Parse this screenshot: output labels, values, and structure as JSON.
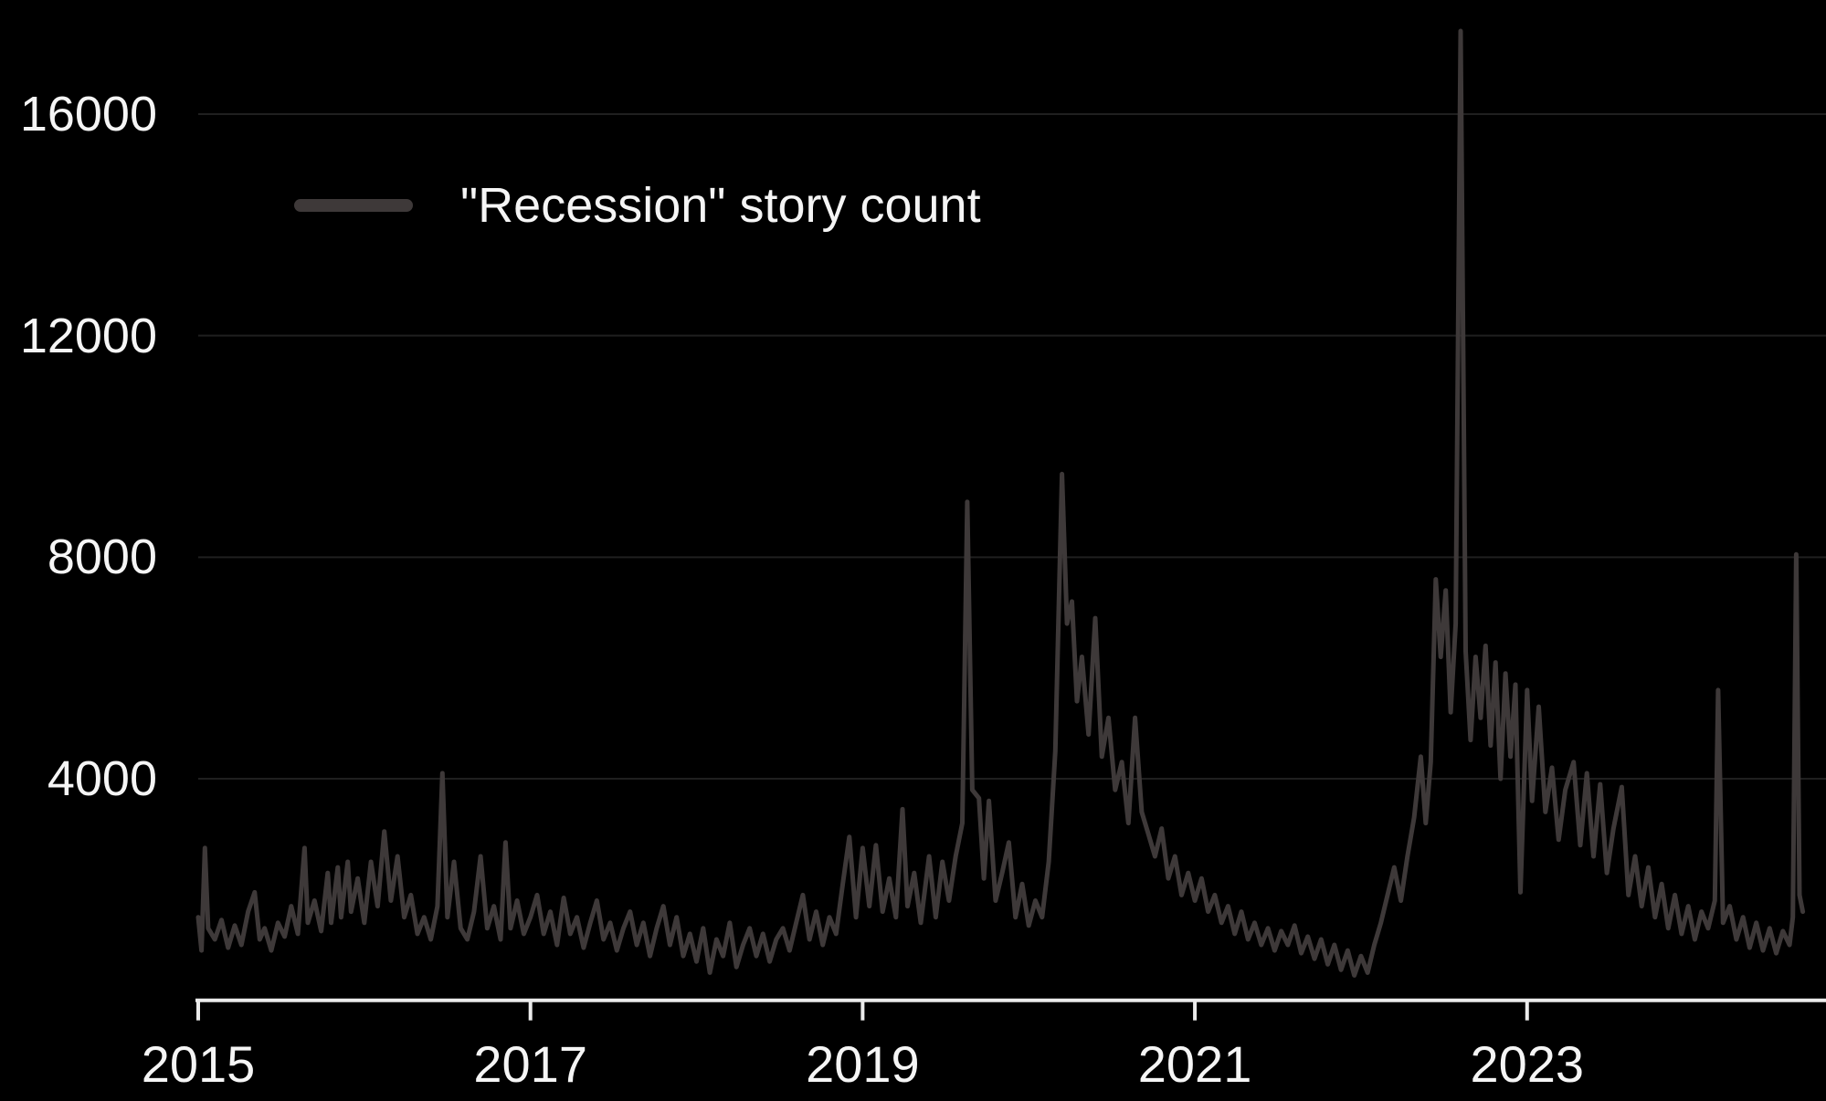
{
  "colors": {
    "background": "#000000",
    "series": "#3e3939",
    "gridline": "#1f1f1f",
    "axis": "#ebebeb",
    "label": "#f5f5f5"
  },
  "chart_data": {
    "type": "line",
    "title": "",
    "legend_position": "top-left-inside",
    "grid": "horizontal-only",
    "legend": [
      {
        "label": "\"Recession\" story count",
        "color": "#3e3939"
      }
    ],
    "x_axis": {
      "label": "",
      "range": [
        2015,
        2024.75
      ],
      "ticks": [
        2015,
        2017,
        2019,
        2021,
        2023
      ],
      "tick_labels": [
        "2015",
        "2017",
        "2019",
        "2021",
        "2023"
      ]
    },
    "y_axis": {
      "label": "",
      "range": [
        0,
        18060
      ],
      "ticks": [
        4000,
        8000,
        12000,
        16000
      ],
      "tick_labels": [
        "4000",
        "8000",
        "12000",
        "16000"
      ]
    },
    "series": [
      {
        "name": "\"Recession\" story count",
        "color": "#3e3939",
        "stroke_width": 5,
        "points": [
          [
            2015.0,
            1500
          ],
          [
            2015.02,
            900
          ],
          [
            2015.04,
            2750
          ],
          [
            2015.06,
            1300
          ],
          [
            2015.1,
            1100
          ],
          [
            2015.14,
            1450
          ],
          [
            2015.18,
            950
          ],
          [
            2015.22,
            1350
          ],
          [
            2015.26,
            1000
          ],
          [
            2015.3,
            1600
          ],
          [
            2015.34,
            1950
          ],
          [
            2015.37,
            1100
          ],
          [
            2015.4,
            1300
          ],
          [
            2015.44,
            900
          ],
          [
            2015.48,
            1400
          ],
          [
            2015.52,
            1150
          ],
          [
            2015.56,
            1700
          ],
          [
            2015.6,
            1200
          ],
          [
            2015.64,
            2750
          ],
          [
            2015.66,
            1400
          ],
          [
            2015.7,
            1800
          ],
          [
            2015.74,
            1250
          ],
          [
            2015.78,
            2300
          ],
          [
            2015.8,
            1400
          ],
          [
            2015.84,
            2400
          ],
          [
            2015.86,
            1500
          ],
          [
            2015.9,
            2500
          ],
          [
            2015.92,
            1600
          ],
          [
            2015.96,
            2200
          ],
          [
            2016.0,
            1400
          ],
          [
            2016.04,
            2500
          ],
          [
            2016.08,
            1700
          ],
          [
            2016.12,
            3050
          ],
          [
            2016.16,
            1800
          ],
          [
            2016.2,
            2600
          ],
          [
            2016.24,
            1500
          ],
          [
            2016.28,
            1900
          ],
          [
            2016.32,
            1200
          ],
          [
            2016.36,
            1500
          ],
          [
            2016.4,
            1100
          ],
          [
            2016.44,
            1700
          ],
          [
            2016.47,
            4100
          ],
          [
            2016.5,
            1500
          ],
          [
            2016.54,
            2500
          ],
          [
            2016.58,
            1300
          ],
          [
            2016.62,
            1100
          ],
          [
            2016.66,
            1600
          ],
          [
            2016.7,
            2600
          ],
          [
            2016.74,
            1300
          ],
          [
            2016.78,
            1700
          ],
          [
            2016.82,
            1100
          ],
          [
            2016.85,
            2850
          ],
          [
            2016.88,
            1300
          ],
          [
            2016.92,
            1800
          ],
          [
            2016.96,
            1200
          ],
          [
            2017.0,
            1500
          ],
          [
            2017.04,
            1900
          ],
          [
            2017.08,
            1200
          ],
          [
            2017.12,
            1600
          ],
          [
            2017.16,
            1000
          ],
          [
            2017.2,
            1850
          ],
          [
            2017.24,
            1200
          ],
          [
            2017.28,
            1500
          ],
          [
            2017.32,
            950
          ],
          [
            2017.36,
            1400
          ],
          [
            2017.4,
            1800
          ],
          [
            2017.44,
            1100
          ],
          [
            2017.48,
            1400
          ],
          [
            2017.52,
            900
          ],
          [
            2017.56,
            1300
          ],
          [
            2017.6,
            1600
          ],
          [
            2017.64,
            1000
          ],
          [
            2017.68,
            1400
          ],
          [
            2017.72,
            800
          ],
          [
            2017.76,
            1300
          ],
          [
            2017.8,
            1700
          ],
          [
            2017.84,
            1000
          ],
          [
            2017.88,
            1500
          ],
          [
            2017.92,
            800
          ],
          [
            2017.96,
            1200
          ],
          [
            2018.0,
            700
          ],
          [
            2018.04,
            1300
          ],
          [
            2018.08,
            500
          ],
          [
            2018.12,
            1100
          ],
          [
            2018.16,
            800
          ],
          [
            2018.2,
            1400
          ],
          [
            2018.24,
            600
          ],
          [
            2018.28,
            1000
          ],
          [
            2018.32,
            1300
          ],
          [
            2018.36,
            800
          ],
          [
            2018.4,
            1200
          ],
          [
            2018.44,
            700
          ],
          [
            2018.48,
            1100
          ],
          [
            2018.52,
            1300
          ],
          [
            2018.56,
            900
          ],
          [
            2018.6,
            1400
          ],
          [
            2018.64,
            1900
          ],
          [
            2018.68,
            1100
          ],
          [
            2018.72,
            1600
          ],
          [
            2018.76,
            1000
          ],
          [
            2018.8,
            1500
          ],
          [
            2018.84,
            1200
          ],
          [
            2018.88,
            2100
          ],
          [
            2018.92,
            2950
          ],
          [
            2018.96,
            1500
          ],
          [
            2019.0,
            2750
          ],
          [
            2019.04,
            1700
          ],
          [
            2019.08,
            2800
          ],
          [
            2019.12,
            1600
          ],
          [
            2019.16,
            2200
          ],
          [
            2019.2,
            1500
          ],
          [
            2019.24,
            3450
          ],
          [
            2019.27,
            1700
          ],
          [
            2019.31,
            2300
          ],
          [
            2019.35,
            1400
          ],
          [
            2019.4,
            2600
          ],
          [
            2019.44,
            1500
          ],
          [
            2019.48,
            2500
          ],
          [
            2019.52,
            1800
          ],
          [
            2019.56,
            2600
          ],
          [
            2019.6,
            3200
          ],
          [
            2019.63,
            9000
          ],
          [
            2019.66,
            3800
          ],
          [
            2019.7,
            3650
          ],
          [
            2019.73,
            2200
          ],
          [
            2019.76,
            3600
          ],
          [
            2019.8,
            1800
          ],
          [
            2019.84,
            2300
          ],
          [
            2019.88,
            2850
          ],
          [
            2019.92,
            1500
          ],
          [
            2019.96,
            2100
          ],
          [
            2020.0,
            1350
          ],
          [
            2020.04,
            1800
          ],
          [
            2020.08,
            1500
          ],
          [
            2020.12,
            2500
          ],
          [
            2020.16,
            4500
          ],
          [
            2020.2,
            9500
          ],
          [
            2020.23,
            6800
          ],
          [
            2020.26,
            7200
          ],
          [
            2020.29,
            5400
          ],
          [
            2020.32,
            6200
          ],
          [
            2020.36,
            4800
          ],
          [
            2020.4,
            6900
          ],
          [
            2020.44,
            4400
          ],
          [
            2020.48,
            5100
          ],
          [
            2020.52,
            3800
          ],
          [
            2020.56,
            4300
          ],
          [
            2020.6,
            3200
          ],
          [
            2020.64,
            5100
          ],
          [
            2020.68,
            3400
          ],
          [
            2020.72,
            3000
          ],
          [
            2020.76,
            2600
          ],
          [
            2020.8,
            3100
          ],
          [
            2020.84,
            2200
          ],
          [
            2020.88,
            2600
          ],
          [
            2020.92,
            1900
          ],
          [
            2020.96,
            2300
          ],
          [
            2021.0,
            1800
          ],
          [
            2021.04,
            2200
          ],
          [
            2021.08,
            1600
          ],
          [
            2021.12,
            1900
          ],
          [
            2021.16,
            1400
          ],
          [
            2021.2,
            1700
          ],
          [
            2021.24,
            1200
          ],
          [
            2021.28,
            1600
          ],
          [
            2021.32,
            1100
          ],
          [
            2021.36,
            1400
          ],
          [
            2021.4,
            1000
          ],
          [
            2021.44,
            1300
          ],
          [
            2021.48,
            900
          ],
          [
            2021.52,
            1250
          ],
          [
            2021.56,
            1000
          ],
          [
            2021.6,
            1350
          ],
          [
            2021.64,
            850
          ],
          [
            2021.68,
            1150
          ],
          [
            2021.72,
            750
          ],
          [
            2021.76,
            1100
          ],
          [
            2021.8,
            650
          ],
          [
            2021.84,
            1000
          ],
          [
            2021.88,
            550
          ],
          [
            2021.92,
            900
          ],
          [
            2021.96,
            450
          ],
          [
            2022.0,
            800
          ],
          [
            2022.04,
            500
          ],
          [
            2022.08,
            1000
          ],
          [
            2022.12,
            1400
          ],
          [
            2022.16,
            1900
          ],
          [
            2022.2,
            2400
          ],
          [
            2022.24,
            1800
          ],
          [
            2022.28,
            2600
          ],
          [
            2022.32,
            3300
          ],
          [
            2022.36,
            4400
          ],
          [
            2022.39,
            3200
          ],
          [
            2022.42,
            4300
          ],
          [
            2022.45,
            7600
          ],
          [
            2022.48,
            6200
          ],
          [
            2022.51,
            7400
          ],
          [
            2022.54,
            5200
          ],
          [
            2022.57,
            6800
          ],
          [
            2022.6,
            17500
          ],
          [
            2022.63,
            6300
          ],
          [
            2022.66,
            4700
          ],
          [
            2022.69,
            6200
          ],
          [
            2022.72,
            5100
          ],
          [
            2022.75,
            6400
          ],
          [
            2022.78,
            4600
          ],
          [
            2022.81,
            6100
          ],
          [
            2022.84,
            4000
          ],
          [
            2022.87,
            5900
          ],
          [
            2022.9,
            4400
          ],
          [
            2022.93,
            5700
          ],
          [
            2022.96,
            1950
          ],
          [
            2023.0,
            5600
          ],
          [
            2023.03,
            3600
          ],
          [
            2023.07,
            5300
          ],
          [
            2023.11,
            3400
          ],
          [
            2023.15,
            4200
          ],
          [
            2023.19,
            2900
          ],
          [
            2023.23,
            3800
          ],
          [
            2023.28,
            4300
          ],
          [
            2023.32,
            2800
          ],
          [
            2023.36,
            4100
          ],
          [
            2023.4,
            2600
          ],
          [
            2023.44,
            3900
          ],
          [
            2023.48,
            2300
          ],
          [
            2023.52,
            3100
          ],
          [
            2023.57,
            3850
          ],
          [
            2023.61,
            1900
          ],
          [
            2023.65,
            2600
          ],
          [
            2023.69,
            1700
          ],
          [
            2023.73,
            2400
          ],
          [
            2023.77,
            1500
          ],
          [
            2023.81,
            2100
          ],
          [
            2023.85,
            1300
          ],
          [
            2023.89,
            1900
          ],
          [
            2023.93,
            1200
          ],
          [
            2023.97,
            1700
          ],
          [
            2024.01,
            1100
          ],
          [
            2024.05,
            1600
          ],
          [
            2024.09,
            1300
          ],
          [
            2024.13,
            1800
          ],
          [
            2024.15,
            5600
          ],
          [
            2024.18,
            1400
          ],
          [
            2024.22,
            1700
          ],
          [
            2024.26,
            1100
          ],
          [
            2024.3,
            1500
          ],
          [
            2024.34,
            950
          ],
          [
            2024.38,
            1400
          ],
          [
            2024.42,
            900
          ],
          [
            2024.46,
            1300
          ],
          [
            2024.5,
            850
          ],
          [
            2024.54,
            1250
          ],
          [
            2024.58,
            1000
          ],
          [
            2024.6,
            1500
          ],
          [
            2024.62,
            8050
          ],
          [
            2024.64,
            1900
          ],
          [
            2024.66,
            1600
          ]
        ]
      }
    ]
  }
}
